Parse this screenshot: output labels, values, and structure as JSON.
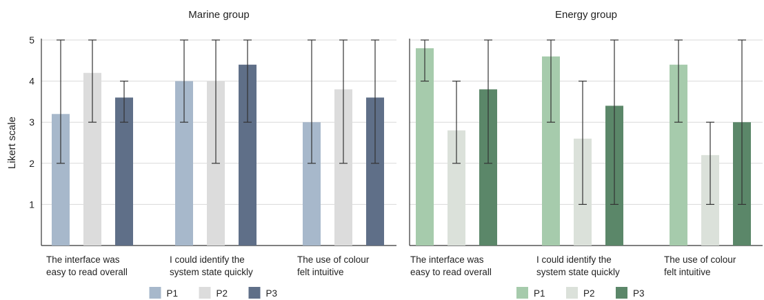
{
  "ylabel": "Likert scale",
  "ylim": [
    0,
    5
  ],
  "yticks": [
    "1",
    "2",
    "3",
    "4",
    "5"
  ],
  "chart_data": [
    {
      "type": "bar",
      "title": "Marine group",
      "ylabel": "Likert scale",
      "ylim": [
        0,
        5
      ],
      "grid": true,
      "legend": "bottom-center",
      "categories": [
        [
          "The interface was",
          "easy to read overall"
        ],
        [
          "I could identify the",
          "system state quickly"
        ],
        [
          "The use of colour",
          "felt intuitive"
        ]
      ],
      "series": [
        {
          "name": "P1",
          "color": "#a7b8cb",
          "values": [
            3.2,
            4.0,
            3.0
          ],
          "err_low": [
            2,
            3,
            2
          ],
          "err_high": [
            5,
            5,
            5
          ]
        },
        {
          "name": "P2",
          "color": "#dcdcdc",
          "values": [
            4.2,
            4.0,
            3.8
          ],
          "err_low": [
            3,
            2,
            2
          ],
          "err_high": [
            5,
            5,
            5
          ]
        },
        {
          "name": "P3",
          "color": "#5f6f88",
          "values": [
            3.6,
            4.4,
            3.6
          ],
          "err_low": [
            3,
            3,
            2
          ],
          "err_high": [
            4,
            5,
            5
          ]
        }
      ]
    },
    {
      "type": "bar",
      "title": "Energy group",
      "ylim": [
        0,
        5
      ],
      "grid": true,
      "legend": "bottom-center",
      "categories": [
        [
          "The interface was",
          "easy to read overall"
        ],
        [
          "I could identify the",
          "system state quickly"
        ],
        [
          "The use of colour",
          "felt intuitive"
        ]
      ],
      "series": [
        {
          "name": "P1",
          "color": "#a6cbac",
          "values": [
            4.8,
            4.6,
            4.4
          ],
          "err_low": [
            4,
            3,
            3
          ],
          "err_high": [
            5,
            5,
            5
          ]
        },
        {
          "name": "P2",
          "color": "#dbe1da",
          "values": [
            2.8,
            2.6,
            2.2
          ],
          "err_low": [
            2,
            1,
            1
          ],
          "err_high": [
            4,
            4,
            3
          ]
        },
        {
          "name": "P3",
          "color": "#5b8769",
          "values": [
            3.8,
            3.4,
            3.0
          ],
          "err_low": [
            2,
            1,
            1
          ],
          "err_high": [
            5,
            5,
            5
          ]
        }
      ]
    }
  ]
}
